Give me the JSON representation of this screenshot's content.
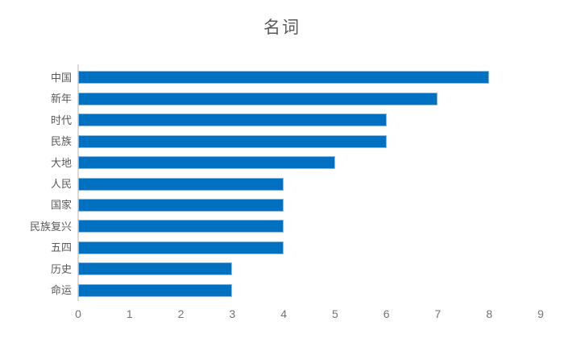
{
  "chart_data": {
    "type": "bar",
    "orientation": "horizontal",
    "title": "名词",
    "categories": [
      "中国",
      "新年",
      "时代",
      "民族",
      "大地",
      "人民",
      "国家",
      "民族复兴",
      "五四",
      "历史",
      "命运"
    ],
    "values": [
      8,
      7,
      6,
      6,
      5,
      4,
      4,
      4,
      4,
      3,
      3
    ],
    "xlabel": "",
    "ylabel": "",
    "xlim": [
      0,
      9
    ],
    "xticks": [
      0,
      1,
      2,
      3,
      4,
      5,
      6,
      7,
      8,
      9
    ],
    "grid": false,
    "legend": false,
    "colors": {
      "bar_fill": "#0070c0",
      "bar_edge": "#8ab9e4",
      "axis_line": "#d9d9d9",
      "title_text": "#595959",
      "category_text": "#595959",
      "tick_text": "#737373",
      "background": "#ffffff"
    }
  }
}
